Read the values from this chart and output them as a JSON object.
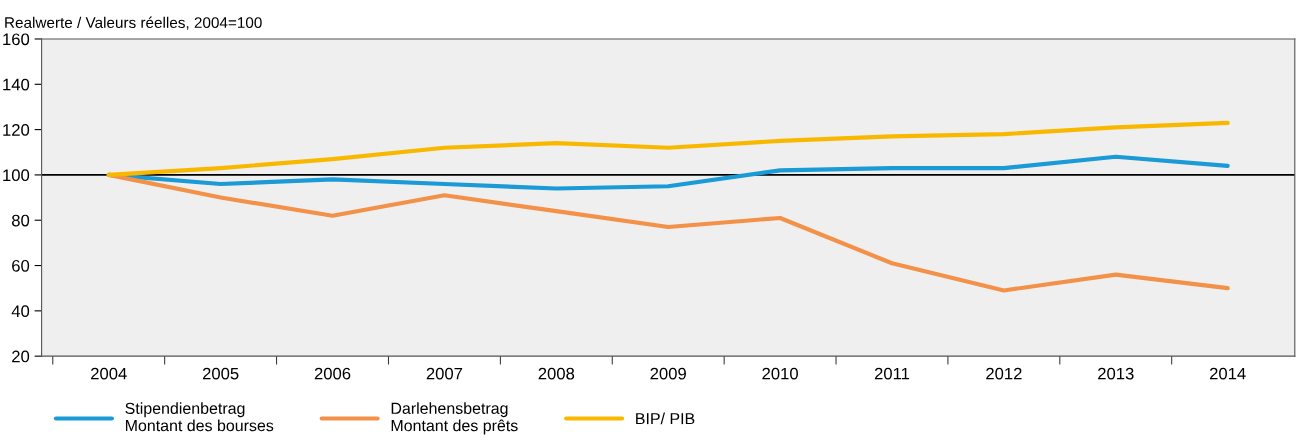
{
  "chart_data": {
    "type": "line",
    "title": "Realwerte / Valeurs réelles, 2004=100",
    "categories": [
      "2004",
      "2005",
      "2006",
      "2007",
      "2008",
      "2009",
      "2010",
      "2011",
      "2012",
      "2013",
      "2014"
    ],
    "series": [
      {
        "name": "Stipendienbetrag\nMontant des bourses",
        "color": "#1a9ad6",
        "values": [
          100,
          96,
          98,
          96,
          94,
          95,
          102,
          103,
          103,
          108,
          104
        ]
      },
      {
        "name": "Darlehensbetrag\nMontant des prêts",
        "color": "#f39149",
        "values": [
          100,
          90,
          82,
          91,
          84,
          77,
          81,
          61,
          49,
          56,
          50
        ]
      },
      {
        "name": "BIP/ PIB",
        "color": "#f9b800",
        "values": [
          100,
          103,
          107,
          112,
          114,
          112,
          115,
          117,
          118,
          121,
          123
        ]
      }
    ],
    "ylim": [
      20,
      160
    ],
    "yticks": [
      20,
      40,
      60,
      80,
      100,
      120,
      140,
      160
    ],
    "ref_lines": [
      {
        "axis": "y",
        "value": 100,
        "color": "#000000"
      }
    ],
    "grid": false,
    "legend": "bottom",
    "marker": "none",
    "line_style": "solid"
  }
}
